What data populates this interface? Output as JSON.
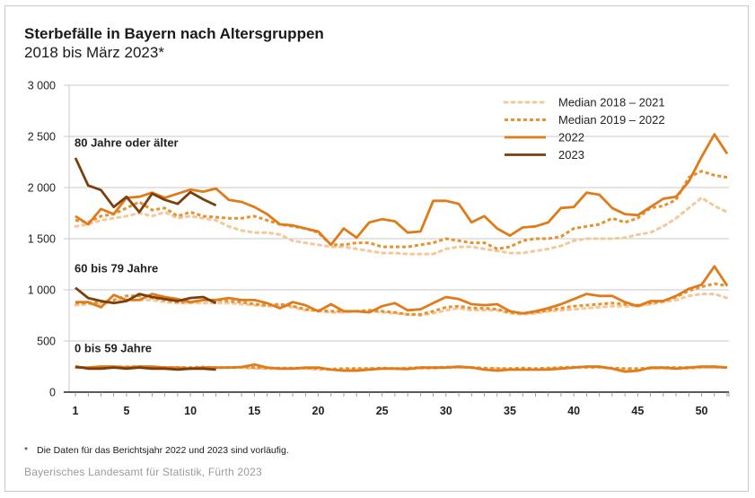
{
  "header": {
    "title": "Sterbefälle in Bayern nach Altersgruppen",
    "subtitle": "2018 bis März 2023*"
  },
  "footer": {
    "footnote_marker": "*",
    "footnote": "Die Daten für das Berichtsjahr 2022 und 2023 sind vorläufig.",
    "source": "Bayerisches Landesamt für Statistik, Fürth 2023"
  },
  "colors": {
    "median_2018_2021": "#f5c79b",
    "median_2019_2022": "#e8922e",
    "y2022": "#e07b1a",
    "y2023": "#7a3f0c",
    "grid": "#c8c8c8",
    "axis": "#222222"
  },
  "chart_data": {
    "type": "line",
    "title": "Sterbefälle in Bayern nach Altersgruppen",
    "subtitle": "2018 bis März 2023*",
    "xlabel": "",
    "ylabel": "",
    "ylim": [
      0,
      3000
    ],
    "xlim": [
      1,
      52
    ],
    "yticks": [
      0,
      500,
      1000,
      1500,
      2000,
      2500,
      3000
    ],
    "ytick_labels": [
      "0",
      "500",
      "1 000",
      "1 500",
      "2 000",
      "2 500",
      "3 000"
    ],
    "xticks": [
      1,
      5,
      10,
      15,
      20,
      25,
      30,
      35,
      40,
      45,
      50
    ],
    "xtick_labels": [
      "1",
      "5",
      "10",
      "15",
      "20",
      "25",
      "30",
      "35",
      "40",
      "45",
      "50"
    ],
    "grid": true,
    "legend_position": "top-right",
    "legend": [
      {
        "key": "median_2018_2021",
        "label": "Median 2018 – 2021",
        "style": "dotted-light"
      },
      {
        "key": "median_2019_2022",
        "label": "Median 2019 – 2022",
        "style": "dotted"
      },
      {
        "key": "y2022",
        "label": "2022",
        "style": "solid"
      },
      {
        "key": "y2023",
        "label": "2023",
        "style": "solid-dark"
      }
    ],
    "groups": [
      {
        "label": "80 Jahre oder älter",
        "label_anchor_value": 2400,
        "series": {
          "median_2018_2021": [
            1620,
            1640,
            1680,
            1700,
            1720,
            1750,
            1720,
            1760,
            1700,
            1720,
            1700,
            1680,
            1620,
            1580,
            1560,
            1560,
            1540,
            1480,
            1460,
            1440,
            1420,
            1420,
            1400,
            1380,
            1360,
            1360,
            1350,
            1350,
            1350,
            1400,
            1420,
            1420,
            1400,
            1380,
            1360,
            1360,
            1380,
            1400,
            1430,
            1480,
            1500,
            1500,
            1500,
            1510,
            1540,
            1560,
            1620,
            1700,
            1800,
            1900,
            1820,
            1760
          ],
          "median_2019_2022": [
            1680,
            1660,
            1720,
            1740,
            1800,
            1860,
            1780,
            1800,
            1720,
            1760,
            1720,
            1710,
            1700,
            1700,
            1720,
            1680,
            1640,
            1620,
            1600,
            1560,
            1440,
            1440,
            1460,
            1460,
            1420,
            1420,
            1420,
            1440,
            1460,
            1500,
            1480,
            1460,
            1460,
            1400,
            1420,
            1480,
            1500,
            1500,
            1520,
            1600,
            1620,
            1640,
            1700,
            1660,
            1700,
            1800,
            1820,
            1880,
            2100,
            2160,
            2120,
            2100
          ],
          "y2022": [
            1720,
            1640,
            1790,
            1740,
            1900,
            1910,
            1950,
            1900,
            1940,
            1980,
            1960,
            1990,
            1880,
            1860,
            1810,
            1740,
            1640,
            1630,
            1600,
            1570,
            1440,
            1600,
            1510,
            1660,
            1690,
            1670,
            1560,
            1570,
            1870,
            1870,
            1840,
            1660,
            1720,
            1600,
            1530,
            1610,
            1620,
            1660,
            1800,
            1810,
            1950,
            1930,
            1800,
            1740,
            1730,
            1810,
            1890,
            1910,
            2060,
            2300,
            2520,
            2330
          ],
          "y2023": [
            2290,
            2020,
            1975,
            1810,
            1910,
            1760,
            1940,
            1880,
            1840,
            1955,
            1885,
            1825
          ]
        }
      },
      {
        "label": "60 bis 79 Jahre",
        "label_anchor_value": 1170,
        "series": {
          "median_2018_2021": [
            850,
            860,
            860,
            880,
            900,
            900,
            900,
            880,
            870,
            870,
            870,
            870,
            870,
            860,
            850,
            840,
            840,
            830,
            800,
            790,
            780,
            780,
            790,
            790,
            780,
            770,
            760,
            750,
            770,
            800,
            820,
            800,
            800,
            800,
            770,
            760,
            770,
            790,
            800,
            810,
            820,
            830,
            840,
            840,
            840,
            860,
            880,
            900,
            940,
            960,
            960,
            920
          ],
          "median_2019_2022": [
            870,
            870,
            880,
            900,
            940,
            940,
            920,
            900,
            880,
            880,
            900,
            900,
            890,
            880,
            860,
            850,
            860,
            840,
            810,
            800,
            790,
            790,
            790,
            800,
            790,
            780,
            760,
            760,
            790,
            830,
            840,
            820,
            820,
            810,
            780,
            770,
            780,
            800,
            820,
            840,
            850,
            860,
            870,
            860,
            850,
            870,
            890,
            930,
            990,
            1030,
            1060,
            1040
          ],
          "y2022": [
            880,
            880,
            830,
            950,
            900,
            900,
            960,
            930,
            910,
            880,
            900,
            900,
            920,
            900,
            900,
            870,
            820,
            880,
            850,
            790,
            860,
            790,
            790,
            780,
            840,
            870,
            800,
            810,
            870,
            930,
            910,
            860,
            850,
            860,
            790,
            770,
            790,
            820,
            860,
            910,
            960,
            940,
            940,
            880,
            840,
            890,
            890,
            940,
            1010,
            1050,
            1230,
            1040
          ],
          "y2023": [
            1020,
            920,
            890,
            870,
            890,
            960,
            930,
            910,
            890,
            920,
            930,
            870
          ]
        }
      },
      {
        "label": "0 bis 59 Jahre",
        "label_anchor_value": 390,
        "series": {
          "median_2018_2021": [
            240,
            240,
            250,
            250,
            250,
            250,
            240,
            240,
            240,
            240,
            240,
            240,
            240,
            240,
            230,
            230,
            230,
            230,
            230,
            220,
            220,
            220,
            220,
            230,
            230,
            230,
            230,
            230,
            230,
            240,
            240,
            240,
            230,
            230,
            220,
            220,
            220,
            230,
            230,
            240,
            240,
            240,
            230,
            220,
            220,
            230,
            230,
            230,
            230,
            240,
            240,
            240
          ],
          "median_2019_2022": [
            240,
            240,
            245,
            240,
            245,
            250,
            245,
            240,
            240,
            240,
            245,
            240,
            240,
            245,
            240,
            235,
            235,
            235,
            235,
            230,
            225,
            230,
            230,
            230,
            235,
            230,
            235,
            240,
            240,
            245,
            245,
            240,
            235,
            230,
            230,
            235,
            230,
            235,
            240,
            245,
            245,
            245,
            235,
            230,
            230,
            235,
            240,
            240,
            240,
            245,
            245,
            240
          ],
          "y2022": [
            240,
            240,
            250,
            250,
            240,
            250,
            250,
            240,
            240,
            230,
            240,
            240,
            240,
            245,
            270,
            240,
            230,
            230,
            240,
            240,
            220,
            210,
            210,
            220,
            230,
            230,
            225,
            240,
            240,
            240,
            250,
            240,
            220,
            210,
            220,
            220,
            220,
            220,
            230,
            240,
            250,
            250,
            230,
            200,
            210,
            240,
            240,
            230,
            240,
            250,
            250,
            240
          ],
          "y2023": [
            250,
            230,
            230,
            240,
            230,
            240,
            230,
            230,
            220,
            230,
            230,
            220
          ]
        }
      }
    ]
  }
}
